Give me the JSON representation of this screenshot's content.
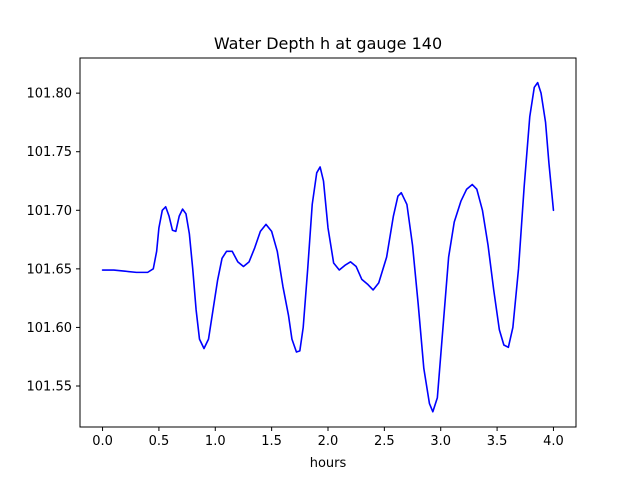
{
  "chart_data": {
    "type": "line",
    "title": "Water Depth h at gauge 140",
    "xlabel": "hours",
    "ylabel": "",
    "xlim": [
      -0.2,
      4.2
    ],
    "ylim": [
      101.515,
      101.83
    ],
    "xticks": [
      {
        "value": 0.0,
        "label": "0.0"
      },
      {
        "value": 0.5,
        "label": "0.5"
      },
      {
        "value": 1.0,
        "label": "1.0"
      },
      {
        "value": 1.5,
        "label": "1.5"
      },
      {
        "value": 2.0,
        "label": "2.0"
      },
      {
        "value": 2.5,
        "label": "2.5"
      },
      {
        "value": 3.0,
        "label": "3.0"
      },
      {
        "value": 3.5,
        "label": "3.5"
      },
      {
        "value": 4.0,
        "label": "4.0"
      }
    ],
    "yticks": [
      {
        "value": 101.55,
        "label": "101.55"
      },
      {
        "value": 101.6,
        "label": "101.60"
      },
      {
        "value": 101.65,
        "label": "101.65"
      },
      {
        "value": 101.7,
        "label": "101.70"
      },
      {
        "value": 101.75,
        "label": "101.75"
      },
      {
        "value": 101.8,
        "label": "101.80"
      }
    ],
    "grid": false,
    "series": [
      {
        "color": "#0000ff",
        "points": [
          [
            0.0,
            101.649
          ],
          [
            0.1,
            101.649
          ],
          [
            0.2,
            101.648
          ],
          [
            0.3,
            101.647
          ],
          [
            0.4,
            101.647
          ],
          [
            0.45,
            101.65
          ],
          [
            0.48,
            101.665
          ],
          [
            0.5,
            101.685
          ],
          [
            0.53,
            101.7
          ],
          [
            0.56,
            101.703
          ],
          [
            0.59,
            101.695
          ],
          [
            0.62,
            101.683
          ],
          [
            0.65,
            101.682
          ],
          [
            0.68,
            101.695
          ],
          [
            0.71,
            101.701
          ],
          [
            0.74,
            101.697
          ],
          [
            0.77,
            101.68
          ],
          [
            0.8,
            101.65
          ],
          [
            0.83,
            101.615
          ],
          [
            0.86,
            101.59
          ],
          [
            0.9,
            101.582
          ],
          [
            0.94,
            101.59
          ],
          [
            0.98,
            101.615
          ],
          [
            1.02,
            101.64
          ],
          [
            1.06,
            101.659
          ],
          [
            1.1,
            101.665
          ],
          [
            1.15,
            101.665
          ],
          [
            1.2,
            101.656
          ],
          [
            1.25,
            101.652
          ],
          [
            1.3,
            101.656
          ],
          [
            1.35,
            101.668
          ],
          [
            1.4,
            101.682
          ],
          [
            1.45,
            101.688
          ],
          [
            1.5,
            101.682
          ],
          [
            1.55,
            101.665
          ],
          [
            1.6,
            101.635
          ],
          [
            1.65,
            101.61
          ],
          [
            1.68,
            101.59
          ],
          [
            1.72,
            101.579
          ],
          [
            1.75,
            101.58
          ],
          [
            1.78,
            101.6
          ],
          [
            1.82,
            101.65
          ],
          [
            1.86,
            101.705
          ],
          [
            1.9,
            101.732
          ],
          [
            1.93,
            101.737
          ],
          [
            1.96,
            101.725
          ],
          [
            2.0,
            101.685
          ],
          [
            2.05,
            101.655
          ],
          [
            2.1,
            101.649
          ],
          [
            2.15,
            101.653
          ],
          [
            2.2,
            101.656
          ],
          [
            2.25,
            101.652
          ],
          [
            2.3,
            101.641
          ],
          [
            2.35,
            101.637
          ],
          [
            2.4,
            101.632
          ],
          [
            2.45,
            101.638
          ],
          [
            2.52,
            101.66
          ],
          [
            2.58,
            101.695
          ],
          [
            2.62,
            101.712
          ],
          [
            2.65,
            101.715
          ],
          [
            2.7,
            101.705
          ],
          [
            2.75,
            101.67
          ],
          [
            2.8,
            101.62
          ],
          [
            2.85,
            101.565
          ],
          [
            2.9,
            101.535
          ],
          [
            2.93,
            101.528
          ],
          [
            2.97,
            101.54
          ],
          [
            3.02,
            101.6
          ],
          [
            3.07,
            101.66
          ],
          [
            3.12,
            101.69
          ],
          [
            3.18,
            101.708
          ],
          [
            3.23,
            101.718
          ],
          [
            3.28,
            101.722
          ],
          [
            3.32,
            101.718
          ],
          [
            3.37,
            101.7
          ],
          [
            3.42,
            101.67
          ],
          [
            3.47,
            101.632
          ],
          [
            3.52,
            101.598
          ],
          [
            3.56,
            101.585
          ],
          [
            3.6,
            101.583
          ],
          [
            3.64,
            101.6
          ],
          [
            3.69,
            101.65
          ],
          [
            3.74,
            101.72
          ],
          [
            3.79,
            101.78
          ],
          [
            3.83,
            101.805
          ],
          [
            3.86,
            101.809
          ],
          [
            3.89,
            101.8
          ],
          [
            3.93,
            101.775
          ],
          [
            3.96,
            101.74
          ],
          [
            4.0,
            101.7
          ]
        ]
      }
    ]
  }
}
